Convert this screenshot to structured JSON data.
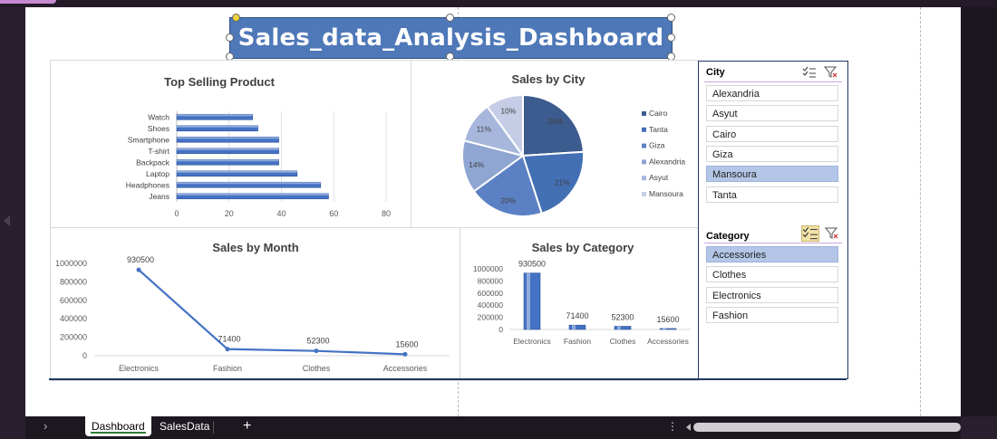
{
  "title": "Sales_data_Analysis_Dashboard",
  "charts": {
    "top_product": {
      "title": "Top Selling Product"
    },
    "city": {
      "title": "Sales by City"
    },
    "month": {
      "title": "Sales by Month"
    },
    "category": {
      "title": "Sales by Category"
    }
  },
  "chart_data": [
    {
      "type": "bar",
      "title": "Top Selling Product",
      "orientation": "horizontal",
      "categories": [
        "Watch",
        "Shoes",
        "Smartphone",
        "T-shirt",
        "Backpack",
        "Laptop",
        "Headphones",
        "Jeans"
      ],
      "values": [
        29,
        31,
        39,
        39,
        39,
        46,
        55,
        58
      ],
      "xlim": [
        0,
        80
      ],
      "xticks": [
        "0",
        "20",
        "40",
        "60",
        "80"
      ],
      "grid": true,
      "color": "#4472c4"
    },
    {
      "type": "pie",
      "title": "Sales by City",
      "categories": [
        "Cairo",
        "Tanta",
        "Giza",
        "Alexandria",
        "Asyut",
        "Mansoura"
      ],
      "values": [
        24,
        21,
        20,
        14,
        11,
        10
      ],
      "labels": [
        "24%",
        "21%",
        "20%",
        "14%",
        "11%",
        "10%"
      ],
      "colors": [
        "#3c5b8e",
        "#4370b5",
        "#5b81c4",
        "#8fa6d3",
        "#a7b7dc",
        "#c5cde6"
      ],
      "legend": "right"
    },
    {
      "type": "line",
      "title": "Sales by Month",
      "categories": [
        "Electronics",
        "Fashion",
        "Clothes",
        "Accessories"
      ],
      "values": [
        930500,
        71400,
        52300,
        15600
      ],
      "labels": [
        "930500",
        "71400",
        "52300",
        "15600"
      ],
      "ylim": [
        0,
        1000000
      ],
      "yticks": [
        "1000000",
        "800000",
        "600000",
        "400000",
        "200000",
        "0"
      ],
      "color": "#4472c4"
    },
    {
      "type": "bar",
      "title": "Sales by Category",
      "categories": [
        "Electronics",
        "Fashion",
        "Clothes",
        "Accessories"
      ],
      "values": [
        930500,
        71400,
        52300,
        15600
      ],
      "labels": [
        "930500",
        "71400",
        "52300",
        "15600"
      ],
      "ylim": [
        0,
        1000000
      ],
      "yticks": [
        "1000000",
        "800000",
        "600000",
        "400000",
        "200000",
        "0"
      ],
      "color": "#4472c4"
    }
  ],
  "slicers": {
    "city": {
      "header": "City",
      "items": [
        {
          "label": "Alexandria",
          "selected": false
        },
        {
          "label": "Asyut",
          "selected": false
        },
        {
          "label": "Cairo",
          "selected": false
        },
        {
          "label": "Giza",
          "selected": false
        },
        {
          "label": "Mansoura",
          "selected": true
        },
        {
          "label": "Tanta",
          "selected": false
        }
      ]
    },
    "category": {
      "header": "Category",
      "items": [
        {
          "label": "Accessories",
          "selected": true
        },
        {
          "label": "Clothes",
          "selected": false
        },
        {
          "label": "Electronics",
          "selected": false
        },
        {
          "label": "Fashion",
          "selected": false
        }
      ]
    }
  },
  "sheet_tabs": {
    "active": "Dashboard",
    "other": "SalesData",
    "add": "+",
    "prev": "›",
    "more": "⋮"
  },
  "icons": {
    "multi_select": "multi-select-icon",
    "clear_filter": "clear-filter-icon"
  }
}
